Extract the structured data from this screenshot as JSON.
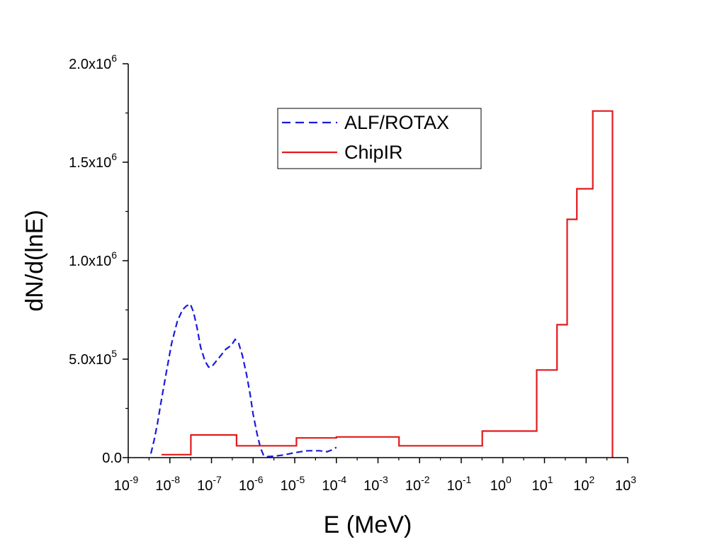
{
  "chart_data": {
    "type": "line",
    "xlabel": "E (MeV)",
    "ylabel": "dN/d(lnE)",
    "x_scale": "log",
    "xlim": [
      1e-09,
      1000
    ],
    "ylim": [
      0,
      2000000
    ],
    "x_ticks": [
      {
        "base": "10",
        "exp": "-9"
      },
      {
        "base": "10",
        "exp": "-8"
      },
      {
        "base": "10",
        "exp": "-7"
      },
      {
        "base": "10",
        "exp": "-6"
      },
      {
        "base": "10",
        "exp": "-5"
      },
      {
        "base": "10",
        "exp": "-4"
      },
      {
        "base": "10",
        "exp": "-3"
      },
      {
        "base": "10",
        "exp": "-2"
      },
      {
        "base": "10",
        "exp": "-1"
      },
      {
        "base": "10",
        "exp": "0"
      },
      {
        "base": "10",
        "exp": "1"
      },
      {
        "base": "10",
        "exp": "2"
      },
      {
        "base": "10",
        "exp": "3"
      }
    ],
    "y_ticks": [
      {
        "value": 0,
        "mantissa": "0.0",
        "exp": ""
      },
      {
        "value": 500000,
        "mantissa": "5.0x10",
        "exp": "5"
      },
      {
        "value": 1000000,
        "mantissa": "1.0x10",
        "exp": "6"
      },
      {
        "value": 1500000,
        "mantissa": "1.5x10",
        "exp": "6"
      },
      {
        "value": 2000000,
        "mantissa": "2.0x10",
        "exp": "6"
      }
    ],
    "legend_position": "top-center",
    "grid": false,
    "series": [
      {
        "name": "ALF/ROTAX",
        "style": "dashed",
        "color": "#1a1adc",
        "points": [
          [
            3.5e-09,
            20000
          ],
          [
            4.2e-09,
            90000
          ],
          [
            5e-09,
            170000
          ],
          [
            6e-09,
            270000
          ],
          [
            8e-09,
            420000
          ],
          [
            1.1e-08,
            580000
          ],
          [
            1.5e-08,
            690000
          ],
          [
            2e-08,
            750000
          ],
          [
            2.5e-08,
            770000
          ],
          [
            3.1e-08,
            780000
          ],
          [
            3.7e-08,
            740000
          ],
          [
            4.5e-08,
            660000
          ],
          [
            5.5e-08,
            560000
          ],
          [
            7e-08,
            490000
          ],
          [
            8.5e-08,
            460000
          ],
          [
            1e-07,
            460000
          ],
          [
            1.3e-07,
            490000
          ],
          [
            1.7e-07,
            520000
          ],
          [
            2.2e-07,
            550000
          ],
          [
            3e-07,
            570000
          ],
          [
            3.7e-07,
            600000
          ],
          [
            4.5e-07,
            580000
          ],
          [
            5.5e-07,
            520000
          ],
          [
            7e-07,
            420000
          ],
          [
            8.5e-07,
            320000
          ],
          [
            1e-06,
            220000
          ],
          [
            1.25e-06,
            120000
          ],
          [
            1.5e-06,
            50000
          ],
          [
            1.8e-06,
            10000
          ],
          [
            2.2e-06,
            5000
          ],
          [
            3.5e-06,
            8000
          ],
          [
            6e-06,
            15000
          ],
          [
            1e-05,
            25000
          ],
          [
            2e-05,
            35000
          ],
          [
            4e-05,
            35000
          ],
          [
            6e-05,
            30000
          ],
          [
            8e-05,
            40000
          ],
          [
            0.0001,
            52000
          ]
        ]
      },
      {
        "name": "ChipIR",
        "style": "step",
        "color": "#e31a1c",
        "bins": [
          {
            "lo": 6.3e-09,
            "hi": 3.2e-08,
            "value": 15000
          },
          {
            "lo": 3.2e-08,
            "hi": 4e-07,
            "value": 115000
          },
          {
            "lo": 4e-07,
            "hi": 1.1e-05,
            "value": 60000
          },
          {
            "lo": 1.1e-05,
            "hi": 0.0001,
            "value": 100000
          },
          {
            "lo": 0.0001,
            "hi": 0.0032,
            "value": 105000
          },
          {
            "lo": 0.0032,
            "hi": 0.32,
            "value": 60000
          },
          {
            "lo": 0.32,
            "hi": 6.5,
            "value": 135000
          },
          {
            "lo": 6.5,
            "hi": 20,
            "value": 445000
          },
          {
            "lo": 20,
            "hi": 35,
            "value": 675000
          },
          {
            "lo": 35,
            "hi": 60,
            "value": 1210000
          },
          {
            "lo": 60,
            "hi": 145,
            "value": 1365000
          },
          {
            "lo": 145,
            "hi": 430,
            "value": 1760000
          }
        ]
      }
    ]
  }
}
